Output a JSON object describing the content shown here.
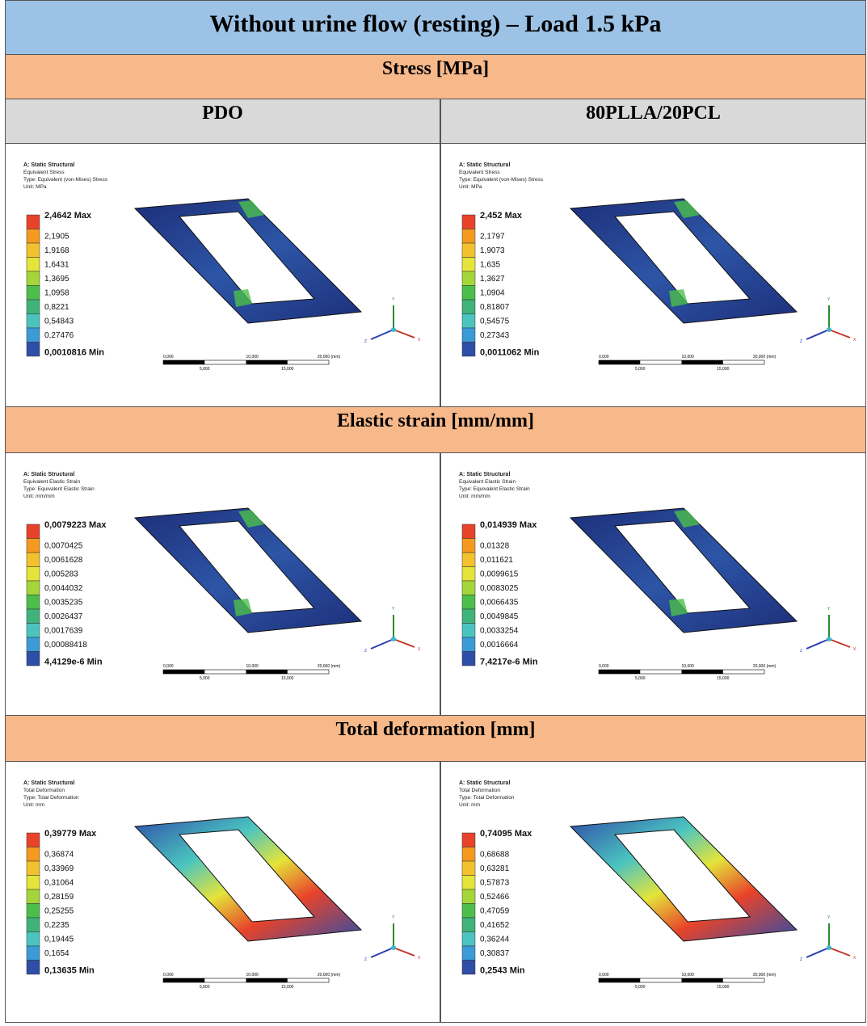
{
  "title": "Without urine flow (resting) – Load 1.5 kPa",
  "columns": [
    "PDO",
    "80PLLA/20PCL"
  ],
  "scale_bar": {
    "top": [
      "0,000",
      "10,000",
      "20,000 (mm)"
    ],
    "bottom": [
      "5,000",
      "15,000"
    ]
  },
  "triad": [
    "Y",
    "Z",
    "X"
  ],
  "sections": [
    {
      "heading": "Stress [MPa]",
      "panels": [
        {
          "header": [
            "A: Static Structural",
            "Equivalent Stress",
            "Type: Equivalent (von-Mises) Stress",
            "Unit: MPa"
          ],
          "legend": [
            "2,4642 Max",
            "2,1905",
            "1,9168",
            "1,6431",
            "1,3695",
            "1,0958",
            "0,8221",
            "0,54843",
            "0,27476",
            "0,0010816 Min"
          ]
        },
        {
          "header": [
            "A: Static Structural",
            "Equivalent Stress",
            "Type: Equivalent (von-Mises) Stress",
            "Unit: MPa"
          ],
          "legend": [
            "2,452 Max",
            "2,1797",
            "1,9073",
            "1,635",
            "1,3627",
            "1,0904",
            "0,81807",
            "0,54575",
            "0,27343",
            "0,0011062 Min"
          ]
        }
      ]
    },
    {
      "heading": "Elastic strain [mm/mm]",
      "panels": [
        {
          "header": [
            "A: Static Structural",
            "Equivalent Elastic Strain",
            "Type: Equivalent Elastic Strain",
            "Unit: mm/mm"
          ],
          "legend": [
            "0,0079223 Max",
            "0,0070425",
            "0,0061628",
            "0,005283",
            "0,0044032",
            "0,0035235",
            "0,0026437",
            "0,0017639",
            "0,00088418",
            "4,4129e-6 Min"
          ]
        },
        {
          "header": [
            "A: Static Structural",
            "Equivalent Elastic Strain",
            "Type: Equivalent Elastic Strain",
            "Unit: mm/mm"
          ],
          "legend": [
            "0,014939 Max",
            "0,01328",
            "0,011621",
            "0,0099615",
            "0,0083025",
            "0,0066435",
            "0,0049845",
            "0,0033254",
            "0,0016664",
            "7,4217e-6 Min"
          ]
        }
      ]
    },
    {
      "heading": "Total deformation [mm]",
      "panels": [
        {
          "header": [
            "A: Static Structural",
            "Total Deformation",
            "Type: Total Deformation",
            "Unit: mm"
          ],
          "legend": [
            "0,39779 Max",
            "0,36874",
            "0,33969",
            "0,31064",
            "0,28159",
            "0,25255",
            "0,2235",
            "0,19445",
            "0,1654",
            "0,13635 Min"
          ]
        },
        {
          "header": [
            "A: Static Structural",
            "Total Deformation",
            "Type: Total Deformation",
            "Unit: mm"
          ],
          "legend": [
            "0,74095 Max",
            "0,68688",
            "0,63281",
            "0,57873",
            "0,52466",
            "0,47059",
            "0,41652",
            "0,36244",
            "0,30837",
            "0,2543 Min"
          ]
        }
      ]
    }
  ]
}
